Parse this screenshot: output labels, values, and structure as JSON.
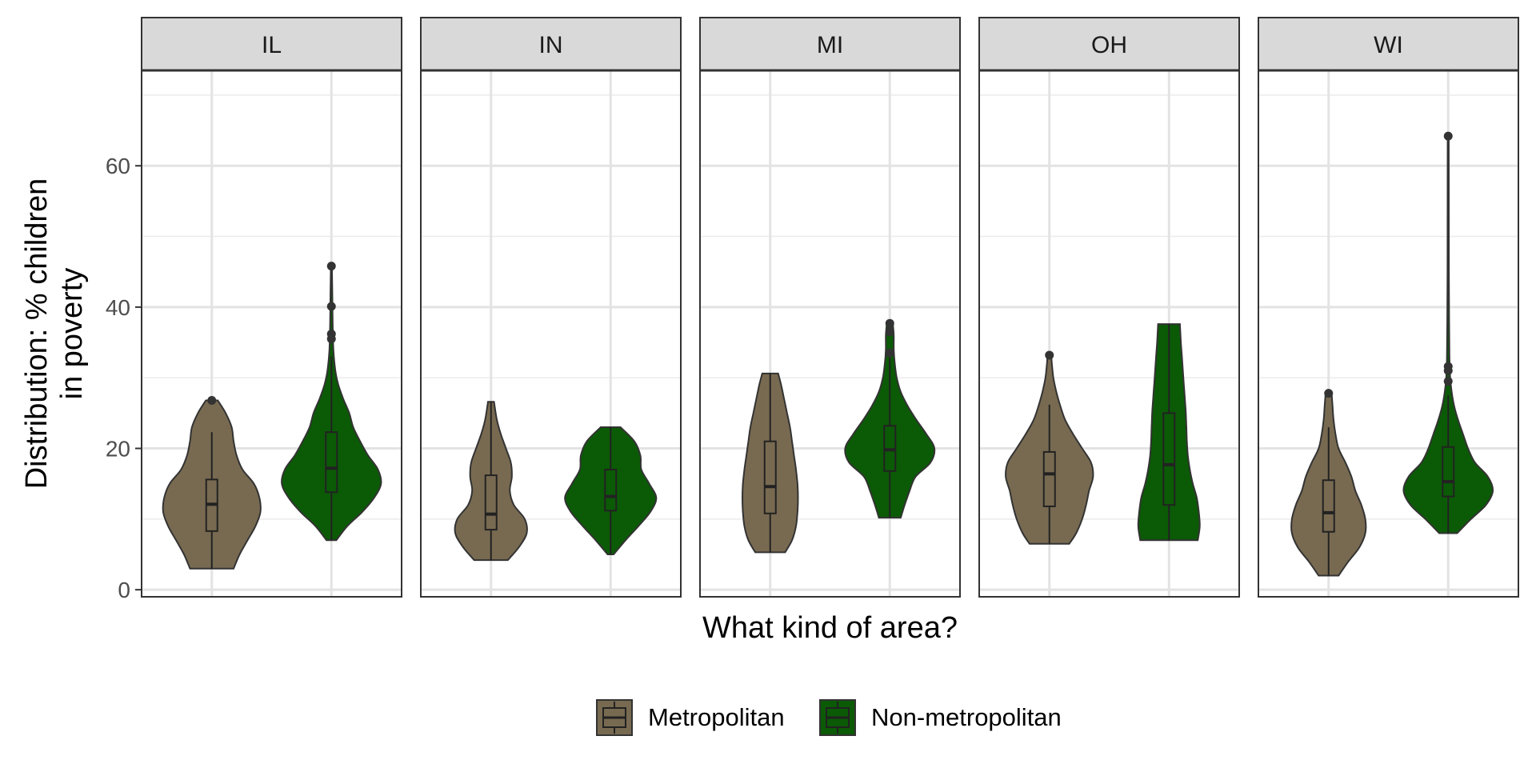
{
  "chart_data": {
    "type": "violin",
    "title": "",
    "xlabel": "What kind of area?",
    "ylabel": "Distribution: % children in poverty",
    "ylabel_lines": [
      "Distribution: % children",
      "in poverty"
    ],
    "ylim": [
      -1,
      73.5
    ],
    "yticks": [
      0,
      20,
      40,
      60
    ],
    "grid": true,
    "legend_position": "bottom",
    "legend": [
      {
        "name": "Metropolitan",
        "color": "#786a51"
      },
      {
        "name": "Non-metropolitan",
        "color": "#0b5a06"
      }
    ],
    "panels": [
      {
        "label": "IL",
        "groups": [
          {
            "series": "Metropolitan",
            "min": 3,
            "max": 26.8,
            "q1": 8.3,
            "median": 12.1,
            "q3": 15.6,
            "whisker_low": 3,
            "whisker_high": 22.3,
            "outliers": [
              26.8
            ],
            "density": [
              [
                3,
                0.44
              ],
              [
                5,
                0.56
              ],
              [
                7,
                0.72
              ],
              [
                9,
                0.88
              ],
              [
                11,
                0.98
              ],
              [
                13,
                0.96
              ],
              [
                15,
                0.85
              ],
              [
                17,
                0.62
              ],
              [
                19,
                0.5
              ],
              [
                21,
                0.44
              ],
              [
                23,
                0.4
              ],
              [
                25,
                0.28
              ],
              [
                26.8,
                0.12
              ]
            ]
          },
          {
            "series": "Non-metropolitan",
            "min": 7,
            "max": 45.8,
            "q1": 13.8,
            "median": 17.2,
            "q3": 22.3,
            "whisker_low": 7,
            "whisker_high": 33,
            "outliers": [
              35.5,
              36.2,
              40.1,
              45.8
            ],
            "density": [
              [
                7,
                0.1
              ],
              [
                9,
                0.32
              ],
              [
                11,
                0.62
              ],
              [
                13,
                0.86
              ],
              [
                15,
                1.0
              ],
              [
                17,
                0.94
              ],
              [
                19,
                0.74
              ],
              [
                21,
                0.58
              ],
              [
                23,
                0.44
              ],
              [
                25,
                0.36
              ],
              [
                27,
                0.24
              ],
              [
                29,
                0.14
              ],
              [
                31,
                0.08
              ],
              [
                34,
                0.04
              ],
              [
                38,
                0.025
              ],
              [
                42,
                0.018
              ],
              [
                45.8,
                0.01
              ]
            ]
          }
        ]
      },
      {
        "label": "IN",
        "groups": [
          {
            "series": "Metropolitan",
            "min": 4.2,
            "max": 26.6,
            "q1": 8.5,
            "median": 10.7,
            "q3": 16.2,
            "whisker_low": 4.2,
            "whisker_high": 26.6,
            "outliers": [],
            "density": [
              [
                4.2,
                0.34
              ],
              [
                6,
                0.56
              ],
              [
                8,
                0.72
              ],
              [
                10,
                0.68
              ],
              [
                12,
                0.46
              ],
              [
                14,
                0.38
              ],
              [
                16,
                0.42
              ],
              [
                18,
                0.4
              ],
              [
                20,
                0.3
              ],
              [
                22,
                0.2
              ],
              [
                24,
                0.12
              ],
              [
                26.6,
                0.06
              ]
            ]
          },
          {
            "series": "Non-metropolitan",
            "min": 5,
            "max": 23,
            "q1": 11.2,
            "median": 13.2,
            "q3": 17,
            "whisker_low": 5,
            "whisker_high": 23,
            "outliers": [],
            "density": [
              [
                5,
                0.06
              ],
              [
                7,
                0.3
              ],
              [
                9,
                0.56
              ],
              [
                11,
                0.8
              ],
              [
                13,
                0.92
              ],
              [
                15,
                0.78
              ],
              [
                17,
                0.62
              ],
              [
                19,
                0.6
              ],
              [
                21,
                0.48
              ],
              [
                23,
                0.2
              ]
            ]
          }
        ]
      },
      {
        "label": "MI",
        "groups": [
          {
            "series": "Metropolitan",
            "min": 5.3,
            "max": 30.6,
            "q1": 10.8,
            "median": 14.6,
            "q3": 21,
            "whisker_low": 5.3,
            "whisker_high": 30.6,
            "outliers": [],
            "density": [
              [
                5.3,
                0.3
              ],
              [
                7,
                0.44
              ],
              [
                9,
                0.52
              ],
              [
                11,
                0.55
              ],
              [
                13,
                0.56
              ],
              [
                15,
                0.55
              ],
              [
                17,
                0.52
              ],
              [
                19,
                0.48
              ],
              [
                21,
                0.44
              ],
              [
                23,
                0.4
              ],
              [
                25,
                0.34
              ],
              [
                27,
                0.28
              ],
              [
                29,
                0.22
              ],
              [
                30.6,
                0.16
              ]
            ]
          },
          {
            "series": "Non-metropolitan",
            "min": 10.2,
            "max": 37.7,
            "q1": 16.8,
            "median": 19.8,
            "q3": 23.2,
            "whisker_low": 10.2,
            "whisker_high": 32.8,
            "outliers": [
              33.5,
              36.5,
              37.7
            ],
            "density": [
              [
                10.2,
                0.22
              ],
              [
                12,
                0.3
              ],
              [
                14,
                0.4
              ],
              [
                16,
                0.52
              ],
              [
                18,
                0.82
              ],
              [
                20,
                0.9
              ],
              [
                22,
                0.74
              ],
              [
                24,
                0.54
              ],
              [
                26,
                0.36
              ],
              [
                28,
                0.22
              ],
              [
                30,
                0.14
              ],
              [
                32,
                0.1
              ],
              [
                34,
                0.08
              ],
              [
                36,
                0.08
              ],
              [
                37.7,
                0.06
              ]
            ]
          }
        ]
      },
      {
        "label": "OH",
        "groups": [
          {
            "series": "Metropolitan",
            "min": 6.5,
            "max": 33.2,
            "q1": 11.8,
            "median": 16.4,
            "q3": 19.5,
            "whisker_low": 6.5,
            "whisker_high": 26.2,
            "outliers": [
              33.2
            ],
            "density": [
              [
                6.5,
                0.4
              ],
              [
                8,
                0.54
              ],
              [
                10,
                0.66
              ],
              [
                12,
                0.74
              ],
              [
                14,
                0.8
              ],
              [
                16,
                0.88
              ],
              [
                18,
                0.84
              ],
              [
                20,
                0.66
              ],
              [
                22,
                0.48
              ],
              [
                24,
                0.32
              ],
              [
                26,
                0.22
              ],
              [
                28,
                0.14
              ],
              [
                30,
                0.08
              ],
              [
                32,
                0.05
              ],
              [
                33.2,
                0.04
              ]
            ]
          },
          {
            "series": "Non-metropolitan",
            "min": 7,
            "max": 37.6,
            "q1": 12,
            "median": 17.7,
            "q3": 25,
            "whisker_low": 7,
            "whisker_high": 37.6,
            "outliers": [],
            "density": [
              [
                7,
                0.58
              ],
              [
                9,
                0.62
              ],
              [
                11,
                0.6
              ],
              [
                13,
                0.56
              ],
              [
                15,
                0.48
              ],
              [
                17,
                0.42
              ],
              [
                19,
                0.38
              ],
              [
                21,
                0.36
              ],
              [
                23,
                0.35
              ],
              [
                25,
                0.34
              ],
              [
                27,
                0.32
              ],
              [
                29,
                0.3
              ],
              [
                31,
                0.28
              ],
              [
                33,
                0.26
              ],
              [
                35,
                0.24
              ],
              [
                37.6,
                0.22
              ]
            ]
          }
        ]
      },
      {
        "label": "WI",
        "groups": [
          {
            "series": "Metropolitan",
            "min": 2,
            "max": 27.8,
            "q1": 8.2,
            "median": 10.9,
            "q3": 15.5,
            "whisker_low": 2,
            "whisker_high": 23,
            "outliers": [
              27.8
            ],
            "density": [
              [
                2,
                0.2
              ],
              [
                4,
                0.4
              ],
              [
                6,
                0.62
              ],
              [
                8,
                0.74
              ],
              [
                10,
                0.74
              ],
              [
                12,
                0.66
              ],
              [
                14,
                0.54
              ],
              [
                16,
                0.46
              ],
              [
                18,
                0.34
              ],
              [
                20,
                0.2
              ],
              [
                22,
                0.14
              ],
              [
                24,
                0.1
              ],
              [
                26,
                0.08
              ],
              [
                27.8,
                0.06
              ]
            ]
          },
          {
            "series": "Non-metropolitan",
            "min": 8,
            "max": 64.2,
            "q1": 13.2,
            "median": 15.3,
            "q3": 20.2,
            "whisker_low": 8,
            "whisker_high": 27.5,
            "outliers": [
              29.5,
              31,
              31.6,
              64.2
            ],
            "density": [
              [
                8,
                0.18
              ],
              [
                10,
                0.46
              ],
              [
                12,
                0.76
              ],
              [
                14,
                0.9
              ],
              [
                16,
                0.8
              ],
              [
                18,
                0.54
              ],
              [
                20,
                0.4
              ],
              [
                22,
                0.3
              ],
              [
                24,
                0.2
              ],
              [
                26,
                0.12
              ],
              [
                28,
                0.07
              ],
              [
                30,
                0.04
              ],
              [
                33,
                0.025
              ],
              [
                38,
                0.018
              ],
              [
                45,
                0.014
              ],
              [
                55,
                0.012
              ],
              [
                64.2,
                0.01
              ]
            ]
          }
        ]
      }
    ]
  }
}
